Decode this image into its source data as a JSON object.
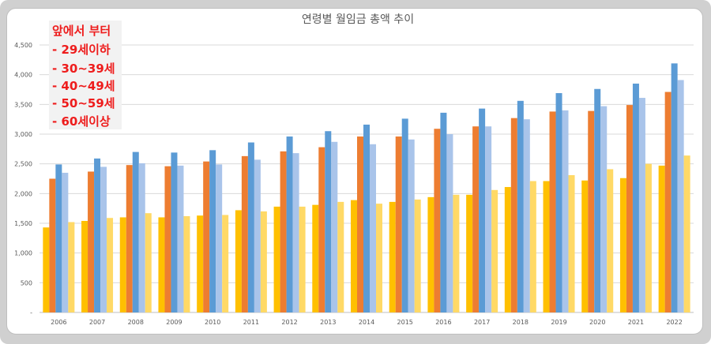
{
  "chart_data": {
    "type": "bar",
    "title": "연령별 월임금 총액 추이",
    "categories": [
      "2006",
      "2007",
      "2008",
      "2009",
      "2010",
      "2011",
      "2012",
      "2013",
      "2014",
      "2015",
      "2016",
      "2017",
      "2018",
      "2019",
      "2020",
      "2021",
      "2022"
    ],
    "series": [
      {
        "color": "#ffc000",
        "values": [
          1430,
          1540,
          1600,
          1600,
          1630,
          1720,
          1780,
          1810,
          1890,
          1860,
          1940,
          1980,
          2110,
          2210,
          2220,
          2260,
          2470
        ]
      },
      {
        "color": "#ed7d31",
        "values": [
          2250,
          2370,
          2480,
          2460,
          2540,
          2630,
          2710,
          2780,
          2960,
          2960,
          3090,
          3130,
          3270,
          3380,
          3390,
          3490,
          3710
        ]
      },
      {
        "color": "#5b9bd5",
        "values": [
          2490,
          2590,
          2700,
          2690,
          2730,
          2860,
          2960,
          3050,
          3160,
          3260,
          3360,
          3430,
          3560,
          3690,
          3760,
          3850,
          4190
        ]
      },
      {
        "color": "#a9c4ea",
        "values": [
          2350,
          2450,
          2510,
          2470,
          2490,
          2570,
          2680,
          2870,
          2830,
          2910,
          3000,
          3130,
          3250,
          3400,
          3470,
          3610,
          3910
        ]
      },
      {
        "color": "#ffd966",
        "values": [
          1520,
          1590,
          1670,
          1620,
          1640,
          1700,
          1780,
          1860,
          1830,
          1900,
          1980,
          2060,
          2210,
          2310,
          2410,
          2500,
          2640
        ]
      }
    ],
    "ylim": [
      0,
      4500
    ],
    "yticks": [
      0,
      500,
      1000,
      1500,
      2000,
      2500,
      3000,
      3500,
      4000,
      4500
    ],
    "ytick_labels": [
      "-",
      "500",
      "1,000",
      "1,500",
      "2,000",
      "2,500",
      "3,000",
      "3,500",
      "4,000",
      "4,500"
    ],
    "grid": true
  },
  "overlay": {
    "lines": [
      "앞에서 부터",
      "- 29세이하",
      "- 30~39세",
      "- 40~49세",
      "- 50~59세",
      "- 60세이상"
    ]
  }
}
